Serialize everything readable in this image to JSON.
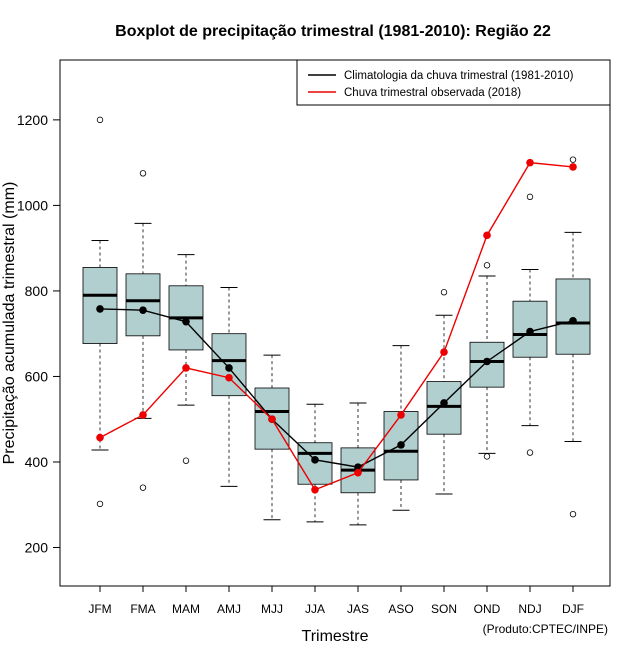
{
  "chart_data": {
    "type": "boxplot",
    "title": "Boxplot de precipitação trimestral (1981-2010): Região 22",
    "xlabel": "Trimestre",
    "ylabel": "Precipitação acumulada trimestral (mm)",
    "credit": "(Produto:CPTEC/INPE)",
    "ylim": [
      110,
      1340
    ],
    "yticks": [
      200,
      400,
      600,
      800,
      1000,
      1200
    ],
    "categories": [
      "JFM",
      "FMA",
      "MAM",
      "AMJ",
      "MJJ",
      "JJA",
      "JAS",
      "ASO",
      "SON",
      "OND",
      "NDJ",
      "DJF"
    ],
    "boxes": [
      {
        "whisker_low": 428,
        "q1": 677,
        "median": 790,
        "q3": 855,
        "whisker_high": 918,
        "outliers": [
          1200,
          302
        ]
      },
      {
        "whisker_low": 502,
        "q1": 695,
        "median": 777,
        "q3": 840,
        "whisker_high": 958,
        "outliers": [
          1075,
          340
        ]
      },
      {
        "whisker_low": 533,
        "q1": 662,
        "median": 737,
        "q3": 812,
        "whisker_high": 885,
        "outliers": [
          403
        ]
      },
      {
        "whisker_low": 343,
        "q1": 555,
        "median": 637,
        "q3": 700,
        "whisker_high": 808,
        "outliers": []
      },
      {
        "whisker_low": 265,
        "q1": 430,
        "median": 518,
        "q3": 573,
        "whisker_high": 650,
        "outliers": []
      },
      {
        "whisker_low": 260,
        "q1": 348,
        "median": 420,
        "q3": 445,
        "whisker_high": 535,
        "outliers": []
      },
      {
        "whisker_low": 253,
        "q1": 328,
        "median": 381,
        "q3": 433,
        "whisker_high": 538,
        "outliers": []
      },
      {
        "whisker_low": 287,
        "q1": 358,
        "median": 425,
        "q3": 518,
        "whisker_high": 672,
        "outliers": []
      },
      {
        "whisker_low": 325,
        "q1": 465,
        "median": 530,
        "q3": 588,
        "whisker_high": 743,
        "outliers": [
          797
        ]
      },
      {
        "whisker_low": 420,
        "q1": 575,
        "median": 635,
        "q3": 680,
        "whisker_high": 835,
        "outliers": [
          860,
          413
        ]
      },
      {
        "whisker_low": 485,
        "q1": 645,
        "median": 698,
        "q3": 776,
        "whisker_high": 850,
        "outliers": [
          1020,
          422
        ]
      },
      {
        "whisker_low": 448,
        "q1": 652,
        "median": 725,
        "q3": 828,
        "whisker_high": 937,
        "outliers": [
          1107,
          278
        ]
      }
    ],
    "series": [
      {
        "name": "Climatologia da chuva trimestral (1981-2010)",
        "color": "#000000",
        "values": [
          758,
          755,
          728,
          620,
          500,
          405,
          388,
          440,
          538,
          635,
          705,
          730
        ]
      },
      {
        "name": "Chuva trimestral observada (2018)",
        "color": "#ee0000",
        "values": [
          457,
          510,
          620,
          597,
          500,
          335,
          375,
          510,
          657,
          930,
          1100,
          1090
        ]
      }
    ],
    "box_fill": "#b2cfcf",
    "legend_position": "top-right"
  }
}
